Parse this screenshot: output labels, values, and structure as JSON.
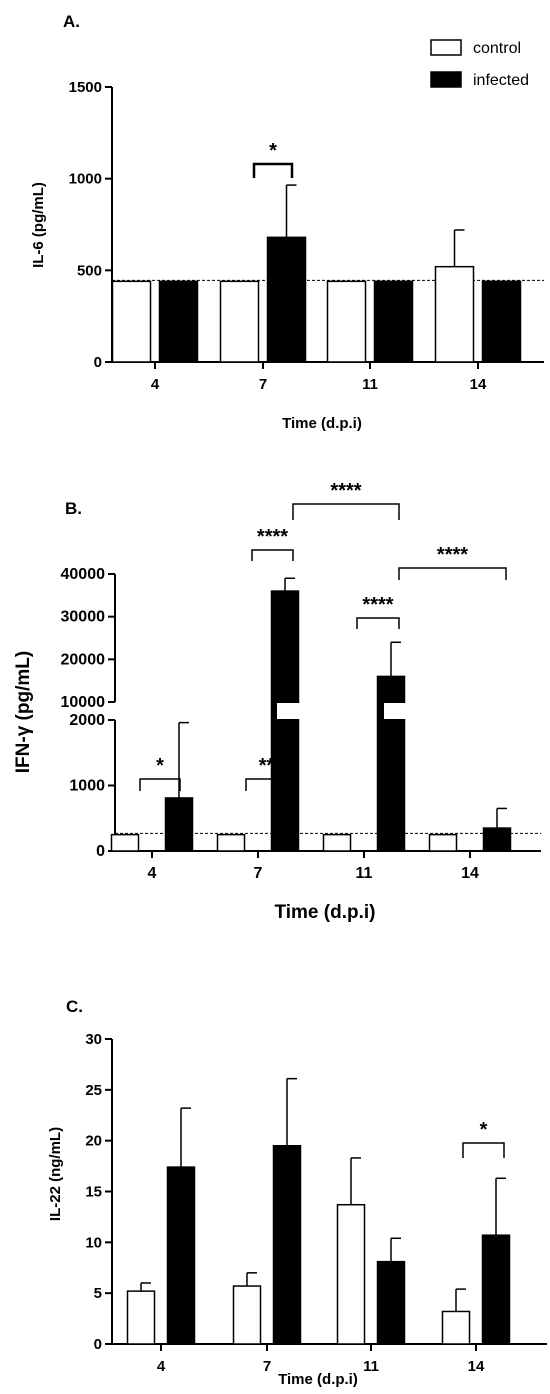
{
  "colors": {
    "control": "#ffffff",
    "infected": "#000000",
    "axis": "#000000"
  },
  "legend": {
    "control_label": "control",
    "infected_label": "infected"
  },
  "chart_data": [
    {
      "type": "bar",
      "panel_label": "A.",
      "xlabel": "Time (d.p.i)",
      "ylabel": "IL-6  (pg/mL)",
      "categories": [
        "4",
        "7",
        "11",
        "14"
      ],
      "ylim": [
        0,
        1500
      ],
      "yticks": [
        "0",
        "500",
        "1000",
        "1500"
      ],
      "series": [
        {
          "name": "control",
          "values": [
            440,
            440,
            440,
            520
          ],
          "errors": [
            0,
            0,
            0,
            200
          ]
        },
        {
          "name": "infected",
          "values": [
            440,
            680,
            440,
            440
          ],
          "errors": [
            0,
            285,
            0,
            0
          ]
        }
      ],
      "reference_line": 445,
      "significance": [
        {
          "label": "*",
          "from": "7 control",
          "to": "7 infected"
        }
      ]
    },
    {
      "type": "bar",
      "panel_label": "B.",
      "xlabel": "Time (d.p.i)",
      "ylabel": "IFN-γ  (pg/mL)",
      "categories": [
        "4",
        "7",
        "11",
        "14"
      ],
      "broken_axis": {
        "lower_range": [
          0,
          2000
        ],
        "upper_range": [
          10000,
          40000
        ]
      },
      "yticks": [
        "0",
        "1000",
        "2000",
        "10000",
        "20000",
        "30000",
        "40000"
      ],
      "series": [
        {
          "name": "control",
          "values": [
            250,
            250,
            250,
            250
          ],
          "errors": [
            0,
            0,
            0,
            0
          ]
        },
        {
          "name": "infected",
          "values": [
            810,
            36000,
            16000,
            350
          ],
          "errors": [
            1150,
            3000,
            8000,
            300
          ]
        }
      ],
      "reference_line": 270,
      "significance": [
        {
          "label": "****",
          "from": "7 control",
          "to": "7 infected"
        },
        {
          "label": "****",
          "from": "7 infected",
          "to": "11 infected"
        },
        {
          "label": "****",
          "from": "11 control",
          "to": "11 infected"
        },
        {
          "label": "****",
          "from": "11 infected",
          "to": "14 infected"
        }
      ]
    },
    {
      "type": "bar",
      "panel_label": "C.",
      "xlabel": "Time (d.p.i)",
      "ylabel": "IL-22 (ng/mL)",
      "categories": [
        "4",
        "7",
        "11",
        "14"
      ],
      "ylim": [
        0,
        30
      ],
      "yticks": [
        "0",
        "5",
        "10",
        "15",
        "20",
        "25",
        "30"
      ],
      "series": [
        {
          "name": "control",
          "values": [
            5.2,
            5.7,
            13.7,
            3.2
          ],
          "errors": [
            0.8,
            1.3,
            4.6,
            2.2
          ]
        },
        {
          "name": "infected",
          "values": [
            17.4,
            19.5,
            8.1,
            10.7
          ],
          "errors": [
            5.8,
            6.6,
            2.3,
            5.6
          ]
        }
      ],
      "significance": [
        {
          "label": "*",
          "from": "4 control",
          "to": "4 infected"
        },
        {
          "label": "**",
          "from": "7 control",
          "to": "7 infected"
        },
        {
          "label": "*",
          "from": "14 control",
          "to": "14 infected"
        }
      ]
    }
  ]
}
